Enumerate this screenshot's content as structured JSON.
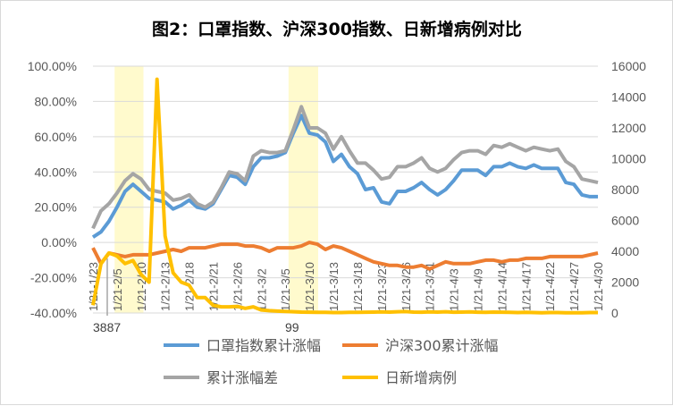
{
  "chart_data": {
    "type": "line",
    "title": "图2：口罩指数、沪深300指数、日新增病例对比",
    "x_tick_labels": [
      "1/21-1/23",
      "1/21-2/5",
      "1/21-2/10",
      "1/21-2/13",
      "1/21-2/18",
      "1/21-2/21",
      "1/21-2/26",
      "1/21-3/2",
      "1/21-3/5",
      "1/21-3/10",
      "1/21-3/13",
      "1/21-3/18",
      "1/21-3/23",
      "1/21-3/26",
      "1/21-3/31",
      "1/21-4/3",
      "1/21-4/9",
      "1/21-4/14",
      "1/21-4/17",
      "1/21-4/22",
      "1/21-4/27",
      "1/21-4/30"
    ],
    "y_left": {
      "ticks": [
        "100.00%",
        "80.00%",
        "60.00%",
        "40.00%",
        "20.00%",
        "0.00%",
        "-20.00%",
        "-40.00%"
      ],
      "range": [
        -40,
        100
      ]
    },
    "y_right": {
      "ticks": [
        "16000",
        "14000",
        "12000",
        "10000",
        "8000",
        "6000",
        "4000",
        "2000",
        "0"
      ],
      "range": [
        0,
        16000
      ]
    },
    "highlight_bands": [
      [
        2.7,
        6.3
      ],
      [
        24.4,
        28.1
      ]
    ],
    "series": [
      {
        "name": "口罩指数累计涨幅",
        "axis": "left",
        "color": "#5b9bd5",
        "values": [
          3,
          6,
          12,
          20,
          29,
          33,
          29,
          25,
          24,
          23,
          19,
          21,
          24,
          20,
          19,
          22,
          30,
          38,
          37,
          33,
          43,
          48,
          48,
          49,
          51,
          62,
          72,
          62,
          61,
          57,
          46,
          50,
          43,
          39,
          30,
          31,
          23,
          22,
          29,
          29,
          31,
          34,
          30,
          27,
          30,
          35,
          41,
          41,
          41,
          38,
          43,
          43,
          45,
          43,
          42,
          44,
          42,
          42,
          42,
          34,
          33,
          27,
          26,
          26
        ]
      },
      {
        "name": "沪深300累计涨幅",
        "axis": "left",
        "color": "#ed7d31",
        "values": [
          -3,
          -12,
          -6,
          -7,
          -8,
          -7,
          -7,
          -7,
          -6,
          -5,
          -4,
          -5,
          -3,
          -3,
          -3,
          -2,
          -1,
          -1,
          -1,
          -2,
          -2,
          -3,
          -5,
          -3,
          -3,
          -3,
          -2,
          0,
          -1,
          -4,
          -2,
          -3,
          -5,
          -7,
          -9,
          -11,
          -12,
          -13,
          -13,
          -14,
          -14,
          -13,
          -15,
          -13,
          -11,
          -12,
          -12,
          -12,
          -11,
          -10,
          -10,
          -11,
          -10,
          -10,
          -9,
          -9,
          -9,
          -8,
          -8,
          -8,
          -8,
          -8,
          -7,
          -6
        ]
      },
      {
        "name": "累计涨幅差",
        "axis": "left",
        "color": "#a5a5a5",
        "values": [
          8,
          18,
          22,
          28,
          35,
          39,
          36,
          30,
          29,
          28,
          24,
          25,
          27,
          22,
          20,
          23,
          31,
          40,
          39,
          35,
          49,
          52,
          51,
          51,
          52,
          64,
          77,
          65,
          65,
          62,
          53,
          60,
          52,
          45,
          45,
          41,
          36,
          37,
          43,
          43,
          45,
          48,
          42,
          40,
          42,
          47,
          51,
          52,
          52,
          50,
          55,
          54,
          56,
          54,
          52,
          54,
          53,
          52,
          53,
          46,
          43,
          36,
          35,
          34
        ]
      },
      {
        "name": "日新增病例",
        "axis": "right",
        "color": "#ffc000",
        "values": [
          500,
          3200,
          3887,
          3700,
          3200,
          3400,
          2500,
          2000,
          15152,
          5000,
          2600,
          2000,
          1800,
          1000,
          1000,
          500,
          400,
          400,
          430,
          300,
          400,
          200,
          150,
          120,
          99,
          80,
          60,
          50,
          40,
          40,
          30,
          30,
          40,
          40,
          50,
          60,
          70,
          60,
          80,
          90,
          60,
          50,
          70,
          60,
          80,
          50,
          60,
          70,
          50,
          40,
          60,
          50,
          40,
          30,
          40,
          30,
          20,
          30,
          30,
          20,
          20,
          20,
          30,
          30
        ]
      }
    ],
    "annotations": [
      {
        "text": "3887",
        "index": 2
      },
      {
        "text": "99",
        "index": 25
      }
    ],
    "legend": "bottom"
  }
}
